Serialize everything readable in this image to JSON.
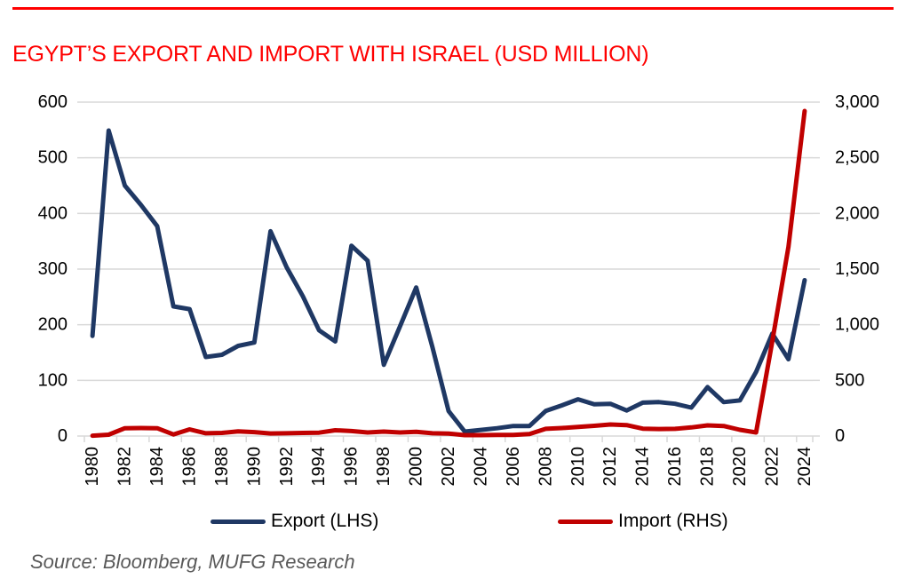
{
  "title": "EGYPT’S EXPORT AND IMPORT WITH ISRAEL (USD MILLION)",
  "source": "Source: Bloomberg, MUFG Research",
  "legend": [
    {
      "label": "Export (LHS)",
      "color": "#1F3864"
    },
    {
      "label": "Import (RHS)",
      "color": "#C00000"
    }
  ],
  "colors": {
    "accent_red": "#FF0000",
    "export_line": "#1F3864",
    "import_line": "#C00000",
    "gridline": "#D9D9D9",
    "axis_text": "#000000",
    "source_text": "#595959"
  },
  "chart_data": {
    "type": "line",
    "title": "EGYPT’S EXPORT AND IMPORT WITH ISRAEL (USD MILLION)",
    "x": [
      1980,
      1981,
      1982,
      1983,
      1984,
      1985,
      1986,
      1987,
      1988,
      1989,
      1990,
      1991,
      1992,
      1993,
      1994,
      1995,
      1996,
      1997,
      1998,
      1999,
      2000,
      2001,
      2002,
      2003,
      2004,
      2005,
      2006,
      2007,
      2008,
      2009,
      2010,
      2011,
      2012,
      2013,
      2014,
      2015,
      2016,
      2017,
      2018,
      2019,
      2020,
      2021,
      2022,
      2023,
      2024
    ],
    "series": [
      {
        "name": "Export (LHS)",
        "axis": "left",
        "color": "#1F3864",
        "values": [
          180,
          549,
          450,
          415,
          377,
          233,
          228,
          142,
          146,
          162,
          168,
          368,
          303,
          251,
          190,
          170,
          342,
          315,
          128,
          197,
          267,
          160,
          45,
          8,
          11,
          14,
          18,
          18,
          45,
          55,
          66,
          57,
          58,
          46,
          60,
          61,
          58,
          51,
          88,
          61,
          64,
          115,
          184,
          138,
          280
        ]
      },
      {
        "name": "Import (RHS)",
        "axis": "right",
        "color": "#C00000",
        "values": [
          3,
          12,
          70,
          72,
          70,
          14,
          60,
          25,
          28,
          42,
          35,
          23,
          25,
          28,
          30,
          52,
          45,
          32,
          40,
          32,
          38,
          25,
          22,
          8,
          8,
          10,
          10,
          18,
          65,
          72,
          82,
          92,
          104,
          98,
          66,
          63,
          65,
          77,
          96,
          90,
          56,
          32,
          850,
          1700,
          2920
        ]
      }
    ],
    "left_axis": {
      "range": [
        0,
        600
      ],
      "ticks": [
        0,
        100,
        200,
        300,
        400,
        500,
        600
      ],
      "labels": [
        "0",
        "100",
        "200",
        "300",
        "400",
        "500",
        "600"
      ]
    },
    "right_axis": {
      "range": [
        0,
        3000
      ],
      "ticks": [
        0,
        500,
        1000,
        1500,
        2000,
        2500,
        3000
      ],
      "labels": [
        "0",
        "500",
        "1,000",
        "1,500",
        "2,000",
        "2,500",
        "3,000"
      ]
    },
    "x_tick_labels": [
      "1980",
      "1982",
      "1984",
      "1986",
      "1988",
      "1990",
      "1992",
      "1994",
      "1996",
      "1998",
      "2000",
      "2002",
      "2004",
      "2006",
      "2008",
      "2010",
      "2012",
      "2014",
      "2016",
      "2018",
      "2020",
      "2022",
      "2024"
    ],
    "x_label_interval": 2,
    "grid": true,
    "legend_position": "bottom"
  }
}
